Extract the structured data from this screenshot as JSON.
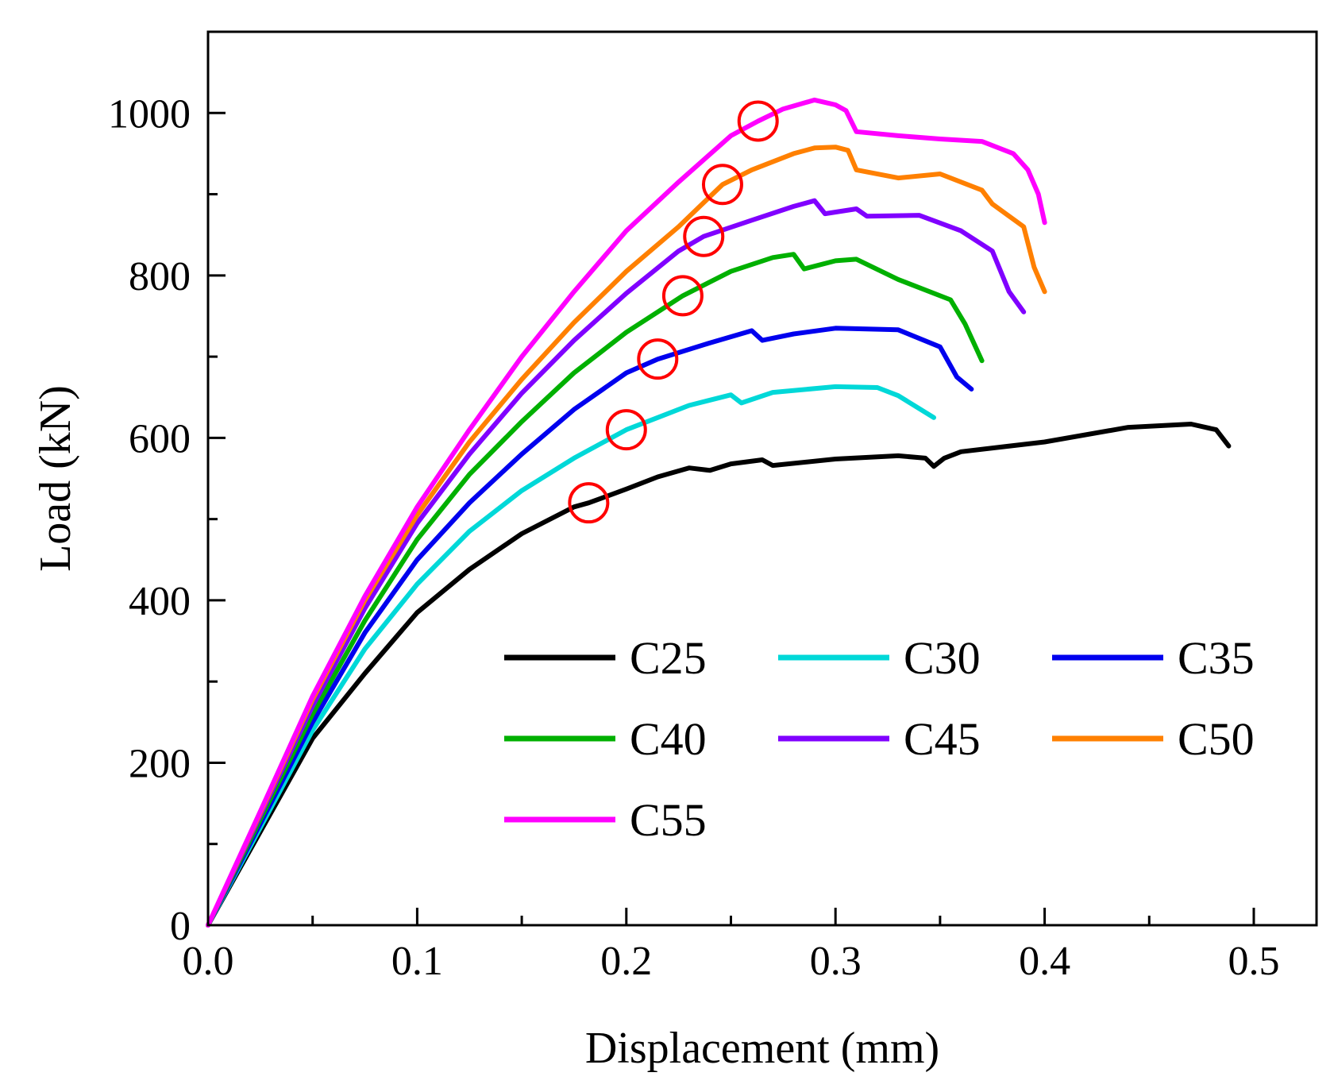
{
  "chart_data": {
    "type": "line",
    "title": "",
    "xlabel": "Displacement (mm)",
    "ylabel": "Load (kN)",
    "xlim": [
      0,
      0.53
    ],
    "ylim": [
      0,
      1100
    ],
    "x_ticks": [
      {
        "value": 0.0,
        "label": "0.0"
      },
      {
        "value": 0.1,
        "label": "0.1"
      },
      {
        "value": 0.2,
        "label": "0.2"
      },
      {
        "value": 0.3,
        "label": "0.3"
      },
      {
        "value": 0.4,
        "label": "0.4"
      },
      {
        "value": 0.5,
        "label": "0.5"
      }
    ],
    "x_minor_ticks": [
      0.05,
      0.15,
      0.25,
      0.35,
      0.45
    ],
    "y_ticks": [
      {
        "value": 0,
        "label": "0"
      },
      {
        "value": 200,
        "label": "200"
      },
      {
        "value": 400,
        "label": "400"
      },
      {
        "value": 600,
        "label": "600"
      },
      {
        "value": 800,
        "label": "800"
      },
      {
        "value": 1000,
        "label": "1000"
      }
    ],
    "y_minor_ticks": [
      100,
      300,
      500,
      700,
      900
    ],
    "grid": false,
    "legend": {
      "placement": "bottom-right",
      "columns": 3
    },
    "series": [
      {
        "name": "C25",
        "color": "#000000",
        "x": [
          0,
          0.025,
          0.05,
          0.075,
          0.1,
          0.125,
          0.15,
          0.175,
          0.182,
          0.2,
          0.215,
          0.23,
          0.24,
          0.25,
          0.265,
          0.27,
          0.3,
          0.33,
          0.343,
          0.347,
          0.352,
          0.36,
          0.4,
          0.44,
          0.47,
          0.482,
          0.488
        ],
        "y": [
          0,
          115,
          230,
          310,
          385,
          438,
          482,
          515,
          520,
          537,
          552,
          563,
          560,
          568,
          573,
          566,
          574,
          578,
          575,
          565,
          575,
          583,
          595,
          613,
          617,
          610,
          590
        ]
      },
      {
        "name": "C30",
        "color": "#00d8d8",
        "x": [
          0,
          0.025,
          0.05,
          0.075,
          0.1,
          0.125,
          0.15,
          0.175,
          0.2,
          0.215,
          0.23,
          0.25,
          0.255,
          0.27,
          0.3,
          0.32,
          0.33,
          0.347
        ],
        "y": [
          0,
          120,
          240,
          340,
          420,
          485,
          535,
          575,
          610,
          625,
          640,
          653,
          643,
          656,
          663,
          662,
          652,
          625
        ]
      },
      {
        "name": "C35",
        "color": "#0000ee",
        "x": [
          0,
          0.025,
          0.05,
          0.075,
          0.1,
          0.125,
          0.15,
          0.175,
          0.2,
          0.215,
          0.24,
          0.26,
          0.265,
          0.28,
          0.3,
          0.33,
          0.35,
          0.358,
          0.365
        ],
        "y": [
          0,
          125,
          250,
          360,
          450,
          520,
          580,
          635,
          680,
          697,
          717,
          732,
          720,
          728,
          735,
          733,
          712,
          675,
          660
        ]
      },
      {
        "name": "C40",
        "color": "#00b000",
        "x": [
          0,
          0.025,
          0.05,
          0.075,
          0.1,
          0.125,
          0.15,
          0.175,
          0.2,
          0.227,
          0.25,
          0.27,
          0.28,
          0.285,
          0.3,
          0.31,
          0.33,
          0.355,
          0.362,
          0.37
        ],
        "y": [
          0,
          130,
          260,
          375,
          475,
          555,
          620,
          680,
          730,
          775,
          805,
          822,
          826,
          808,
          818,
          820,
          795,
          770,
          740,
          695
        ]
      },
      {
        "name": "C45",
        "color": "#8000ff",
        "x": [
          0,
          0.025,
          0.05,
          0.075,
          0.1,
          0.125,
          0.15,
          0.175,
          0.2,
          0.225,
          0.237,
          0.26,
          0.28,
          0.29,
          0.295,
          0.31,
          0.315,
          0.34,
          0.36,
          0.375,
          0.383,
          0.39
        ],
        "y": [
          0,
          135,
          270,
          390,
          495,
          580,
          655,
          720,
          778,
          830,
          848,
          868,
          885,
          892,
          876,
          882,
          873,
          874,
          855,
          830,
          780,
          755
        ]
      },
      {
        "name": "C50",
        "color": "#ff8000",
        "x": [
          0,
          0.025,
          0.05,
          0.075,
          0.1,
          0.125,
          0.15,
          0.175,
          0.2,
          0.225,
          0.246,
          0.26,
          0.28,
          0.29,
          0.3,
          0.306,
          0.31,
          0.33,
          0.35,
          0.37,
          0.375,
          0.39,
          0.395,
          0.4
        ],
        "y": [
          0,
          138,
          278,
          400,
          505,
          595,
          672,
          742,
          805,
          860,
          912,
          930,
          950,
          957,
          958,
          954,
          930,
          920,
          925,
          905,
          888,
          860,
          810,
          780
        ]
      },
      {
        "name": "C55",
        "color": "#ff00ff",
        "x": [
          0,
          0.025,
          0.05,
          0.075,
          0.1,
          0.125,
          0.15,
          0.175,
          0.2,
          0.225,
          0.25,
          0.263,
          0.275,
          0.29,
          0.3,
          0.305,
          0.31,
          0.33,
          0.35,
          0.37,
          0.385,
          0.392,
          0.397,
          0.4
        ],
        "y": [
          0,
          140,
          282,
          405,
          515,
          610,
          700,
          780,
          855,
          915,
          972,
          990,
          1005,
          1016,
          1010,
          1003,
          977,
          972,
          968,
          965,
          950,
          930,
          900,
          865
        ]
      }
    ],
    "annotations": [
      {
        "type": "circle",
        "series": "C25",
        "x": 0.182,
        "y": 520,
        "color": "#ff0000"
      },
      {
        "type": "circle",
        "series": "C30",
        "x": 0.2,
        "y": 610,
        "color": "#ff0000"
      },
      {
        "type": "circle",
        "series": "C35",
        "x": 0.215,
        "y": 697,
        "color": "#ff0000"
      },
      {
        "type": "circle",
        "series": "C40",
        "x": 0.227,
        "y": 775,
        "color": "#ff0000"
      },
      {
        "type": "circle",
        "series": "C45",
        "x": 0.237,
        "y": 848,
        "color": "#ff0000"
      },
      {
        "type": "circle",
        "series": "C50",
        "x": 0.246,
        "y": 912,
        "color": "#ff0000"
      },
      {
        "type": "circle",
        "series": "C55",
        "x": 0.263,
        "y": 990,
        "color": "#ff0000"
      }
    ]
  }
}
